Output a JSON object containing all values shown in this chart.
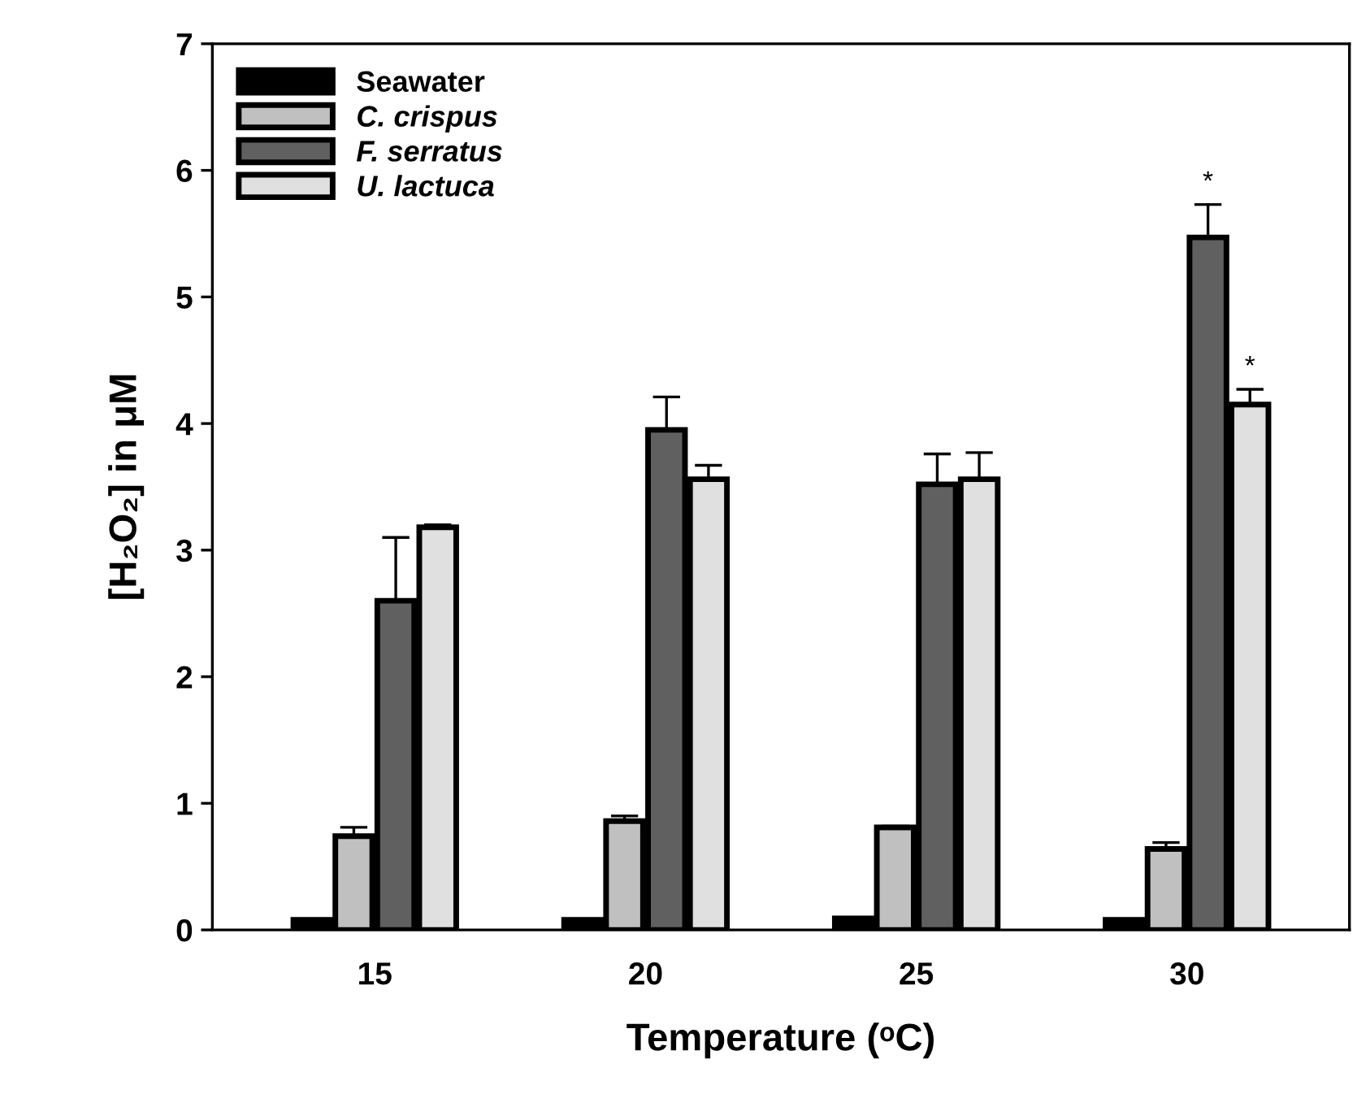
{
  "chart_data": {
    "type": "bar",
    "xlabel": "Temperature (ᵒC)",
    "ylabel": "[H₂O₂] in μM",
    "categories": [
      "15",
      "20",
      "25",
      "30"
    ],
    "series": [
      {
        "name": "Seawater",
        "color": "#000000",
        "values": [
          0.08,
          0.08,
          0.09,
          0.08
        ]
      },
      {
        "name": "C. crispus",
        "color": "#c0c0c0",
        "values": [
          0.74,
          0.86,
          0.81,
          0.64
        ],
        "errors": [
          0.07,
          0.04,
          0.01,
          0.05
        ]
      },
      {
        "name": "F. serratus",
        "color": "#606060",
        "values": [
          2.6,
          3.95,
          3.52,
          5.47
        ],
        "errors": [
          0.5,
          0.26,
          0.24,
          0.26
        ]
      },
      {
        "name": "U. lactuca",
        "color": "#e0e0e0",
        "values": [
          3.18,
          3.56,
          3.56,
          4.15
        ],
        "errors": [
          0.02,
          0.11,
          0.21,
          0.12
        ]
      }
    ],
    "ylim": [
      0,
      7
    ],
    "yticks": [
      0,
      1,
      2,
      3,
      4,
      5,
      6,
      7
    ],
    "annotations": [
      {
        "text": "*",
        "x": "30",
        "y": 5.73
      },
      {
        "text": "*",
        "x": "30",
        "y": 4.27
      }
    ],
    "legend": "top left",
    "grid": false
  }
}
